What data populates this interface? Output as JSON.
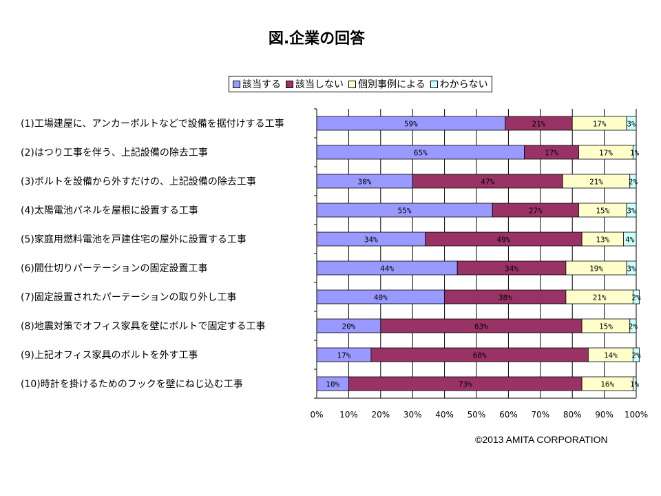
{
  "chart_data": {
    "type": "bar",
    "orientation": "horizontal",
    "stacked": "percent",
    "title": "図.企業の回答",
    "categories": [
      "(1)工場建屋に、アンカーボルトなどで設備を据付けする工事",
      "(2)はつり工事を伴う、上記設備の除去工事",
      "(3)ボルトを設備から外すだけの、上記設備の除去工事",
      "(4)太陽電池パネルを屋根に設置する工事",
      "(5)家庭用燃料電池を戸建住宅の屋外に設置する工事",
      "(6)間仕切りパーテーションの固定設置工事",
      "(7)固定設置されたパーテーションの取り外し工事",
      "(8)地震対策でオフィス家具を壁にボルトで固定する工事",
      "(9)上記オフィス家具のボルトを外す工事",
      "(10)時計を掛けるためのフックを壁にねじ込む工事"
    ],
    "series": [
      {
        "name": "該当する",
        "color": "#9999ff",
        "values": [
          59,
          65,
          30,
          55,
          34,
          44,
          40,
          20,
          17,
          10
        ]
      },
      {
        "name": "該当しない",
        "color": "#993366",
        "values": [
          21,
          17,
          47,
          27,
          49,
          34,
          38,
          63,
          68,
          73
        ]
      },
      {
        "name": "個別事例による",
        "color": "#ffffcc",
        "values": [
          17,
          17,
          21,
          15,
          13,
          19,
          21,
          15,
          14,
          16
        ]
      },
      {
        "name": "わからない",
        "color": "#ccffff",
        "values": [
          3,
          1,
          2,
          3,
          4,
          3,
          2,
          2,
          2,
          1
        ]
      }
    ],
    "xticks": [
      "0%",
      "10%",
      "20%",
      "30%",
      "40%",
      "50%",
      "60%",
      "70%",
      "80%",
      "90%",
      "100%"
    ],
    "xlim": [
      0,
      100
    ],
    "grid": true,
    "legend_position": "top"
  },
  "copyright": "©2013  AMITA CORPORATION"
}
